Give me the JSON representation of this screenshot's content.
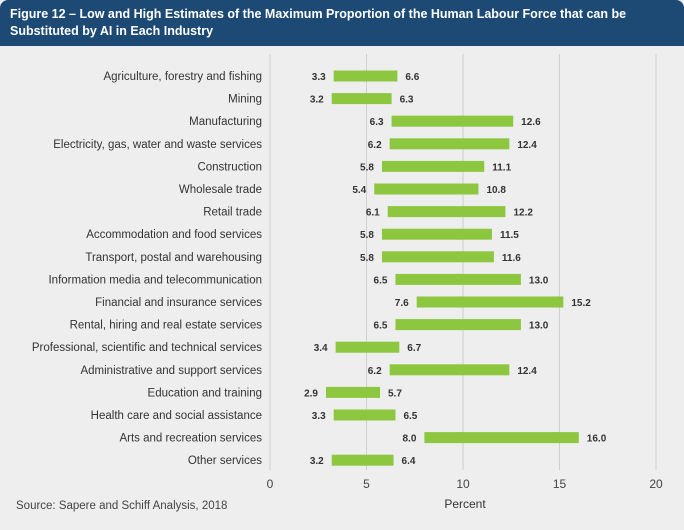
{
  "header": {
    "title": "Figure 12 – Low and High Estimates of the Maximum Proportion of the Human Labour Force that can be Substituted by AI in Each Industry"
  },
  "source": "Source: Sapere and Schiff Analysis, 2018",
  "colors": {
    "bar": "#8dc63f",
    "header": "#1d4a75",
    "background": "#eeeeee"
  },
  "chart_data": {
    "type": "bar",
    "orientation": "horizontal",
    "style": "floating range",
    "title": "Figure 12 – Low and High Estimates of the Maximum Proportion of the Human Labour Force that can be Substituted by AI in Each Industry",
    "xlabel": "Percent",
    "ylabel": "",
    "xlim": [
      0,
      20
    ],
    "xticks": [
      0,
      5,
      10,
      15,
      20
    ],
    "grid": "vertical",
    "categories": [
      "Agriculture, forestry and fishing",
      "Mining",
      "Manufacturing",
      "Electricity, gas, water and waste services",
      "Construction",
      "Wholesale trade",
      "Retail trade",
      "Accommodation and food services",
      "Transport, postal and warehousing",
      "Information media and telecommunication",
      "Financial and insurance services",
      "Rental, hiring and real estate services",
      "Professional, scientific and technical services",
      "Administrative and support services",
      "Education and training",
      "Health care and social assistance",
      "Arts and recreation services",
      "Other services"
    ],
    "low": [
      3.3,
      3.2,
      6.3,
      6.2,
      5.8,
      5.4,
      6.1,
      5.8,
      5.8,
      6.5,
      7.6,
      6.5,
      3.4,
      6.2,
      2.9,
      3.3,
      8.0,
      3.2
    ],
    "high": [
      6.6,
      6.3,
      12.6,
      12.4,
      11.1,
      10.8,
      12.2,
      11.5,
      11.6,
      13.0,
      15.2,
      13.0,
      6.7,
      12.4,
      5.7,
      6.5,
      16.0,
      6.4
    ],
    "low_labels": [
      "3.3",
      "3.2",
      "6.3",
      "6.2",
      "5.8",
      "5.4",
      "6.1",
      "5.8",
      "5.8",
      "6.5",
      "7.6",
      "6.5",
      "3.4",
      "6.2",
      "2.9",
      "3.3",
      "8.0",
      "3.2"
    ],
    "high_labels": [
      "6.6",
      "6.3",
      "12.6",
      "12.4",
      "11.1",
      "10.8",
      "12.2",
      "11.5",
      "11.6",
      "13.0",
      "15.2",
      "13.0",
      "6.7",
      "12.4",
      "5.7",
      "6.5",
      "16.0",
      "6.4"
    ]
  }
}
